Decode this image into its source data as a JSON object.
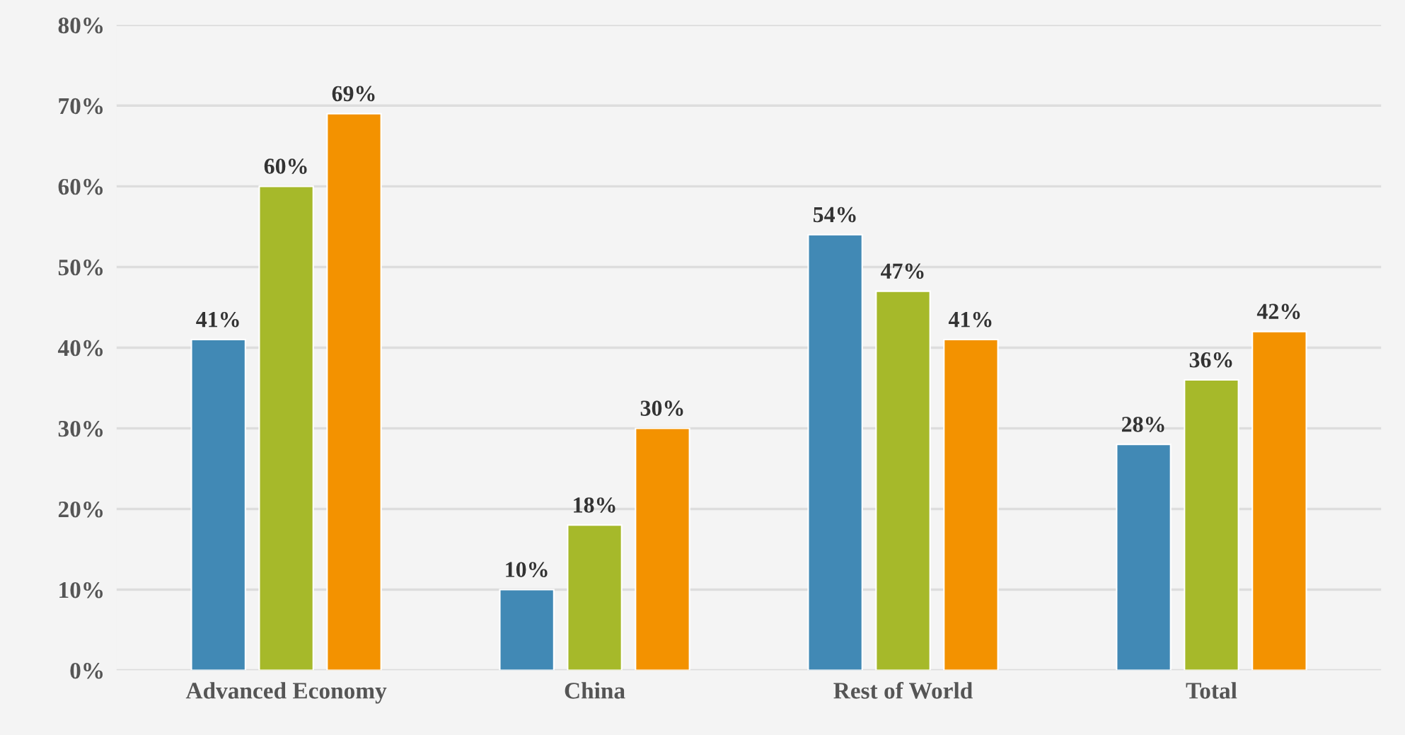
{
  "chart_data": {
    "type": "bar",
    "categories": [
      "Advanced Economy",
      "China",
      "Rest of World",
      "Total"
    ],
    "series": [
      {
        "color": "#4189b5",
        "values": [
          41,
          10,
          54,
          28
        ],
        "value_labels": [
          "41%",
          "10%",
          "54%",
          "28%"
        ]
      },
      {
        "color": "#a6b92a",
        "values": [
          60,
          18,
          47,
          36
        ],
        "value_labels": [
          "60%",
          "18%",
          "47%",
          "36%"
        ]
      },
      {
        "color": "#f39200",
        "values": [
          69,
          30,
          41,
          42
        ],
        "value_labels": [
          "69%",
          "30%",
          "41%",
          "42%"
        ]
      }
    ],
    "ylim": [
      0,
      80
    ],
    "yticks": [
      {
        "value": 0,
        "label": "0%"
      },
      {
        "value": 10,
        "label": "10%"
      },
      {
        "value": 20,
        "label": "20%"
      },
      {
        "value": 30,
        "label": "30%"
      },
      {
        "value": 40,
        "label": "40%"
      },
      {
        "value": 50,
        "label": "50%"
      },
      {
        "value": 60,
        "label": "60%"
      },
      {
        "value": 70,
        "label": "70%"
      },
      {
        "value": 80,
        "label": "80%"
      }
    ],
    "grid": "y",
    "legend": false
  }
}
